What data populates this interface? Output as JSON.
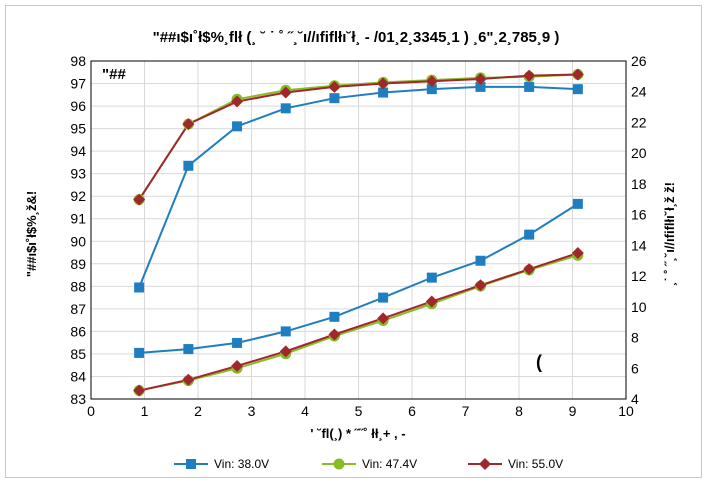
{
  "chart_data": {
    "type": "line",
    "title": "\"##ı$ı˚ł$%¸flł (¸ ˘ ˙ ˚ ˝¸˘ı//ıfiflłı˘ł¸ - /01¸2¸3345¸1 ) ¸6\"¸2¸785¸9 )",
    "inner_label": "\"##",
    "corner_mark": "(",
    "xlabel": "' ˘fl(¸) * ˝˝˚ łł¸+ , -",
    "ylabel_left": "\"##ı$ı˚ł$%¸ž&!",
    "ylabel_right": "¸˙ ˚ ˝¸˘ı//ıfiflłı˘ł¸ž ž!",
    "xlim": [
      0,
      10
    ],
    "ylim_left": [
      83,
      98
    ],
    "ylim_right": [
      4,
      26
    ],
    "x_ticks": [
      0,
      1,
      2,
      3,
      4,
      5,
      6,
      7,
      8,
      9,
      10
    ],
    "y_ticks_left": [
      83,
      84,
      85,
      86,
      87,
      88,
      89,
      90,
      91,
      92,
      93,
      94,
      95,
      96,
      97,
      98
    ],
    "y_ticks_right": [
      4,
      6,
      8,
      10,
      12,
      14,
      16,
      18,
      20,
      22,
      24,
      26
    ],
    "grid": true,
    "legend_position": "bottom",
    "x": [
      0.9,
      1.82,
      2.73,
      3.64,
      4.55,
      5.46,
      6.37,
      7.28,
      8.19,
      9.1
    ],
    "series": [
      {
        "name": "Vin: 38.0V",
        "color": "#1f7ec0",
        "marker": "square",
        "efficiency": [
          87.95,
          93.35,
          95.1,
          95.9,
          96.35,
          96.6,
          96.75,
          96.85,
          96.85,
          96.75
        ],
        "power_loss": [
          7.0,
          7.25,
          7.65,
          8.4,
          9.35,
          10.6,
          11.9,
          13.0,
          14.7,
          16.7
        ]
      },
      {
        "name": "Vin: 47.4V",
        "color": "#86bc25",
        "marker": "circle",
        "efficiency": [
          91.85,
          95.2,
          96.3,
          96.7,
          96.9,
          97.05,
          97.15,
          97.25,
          97.3,
          97.4
        ],
        "power_loss": [
          4.55,
          5.2,
          6.0,
          6.95,
          8.1,
          9.1,
          10.2,
          11.35,
          12.4,
          13.35
        ]
      },
      {
        "name": "Vin: 55.0V",
        "color": "#a0282c",
        "marker": "diamond",
        "efficiency": [
          91.85,
          95.2,
          96.2,
          96.6,
          96.85,
          97.0,
          97.1,
          97.2,
          97.35,
          97.4
        ],
        "power_loss": [
          4.55,
          5.25,
          6.15,
          7.1,
          8.2,
          9.25,
          10.35,
          11.4,
          12.45,
          13.5
        ]
      }
    ]
  }
}
